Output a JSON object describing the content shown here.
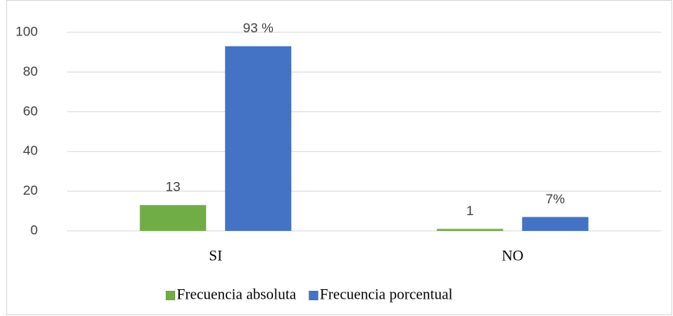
{
  "chart_data": {
    "type": "bar",
    "categories": [
      "SI",
      "NO"
    ],
    "series": [
      {
        "name": "Frecuencia absoluta",
        "color": "#70ad47",
        "values": [
          13,
          1
        ]
      },
      {
        "name": "Frecuencia porcentual",
        "color": "#4472c4",
        "values": [
          93,
          7
        ],
        "value_labels": [
          "93 %",
          "7%"
        ]
      }
    ],
    "ylim": [
      0,
      100
    ],
    "yticks": [
      0,
      20,
      40,
      60,
      80,
      100
    ],
    "grid": true,
    "legend": "bottom"
  }
}
